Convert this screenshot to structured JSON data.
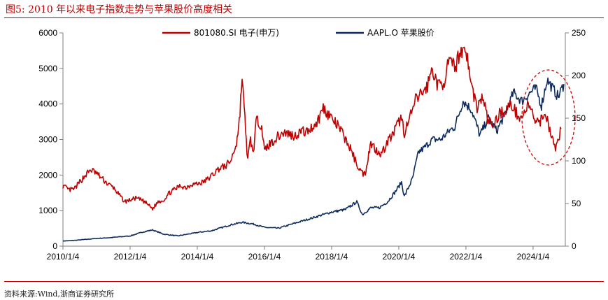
{
  "figure": {
    "title": "图5:   2010 年以来电子指数走势与苹果股价高度相关",
    "source": "资料来源:Wind,浙商证券研究所"
  },
  "colors": {
    "title": "#c00000",
    "electronics": "#c00000",
    "apple": "#0d2a5e",
    "ellipse": "#d40000",
    "axis": "#7f7f7f"
  },
  "chart_data": {
    "type": "line",
    "x_ticks": [
      "2010/1/4",
      "2012/1/4",
      "2014/1/4",
      "2016/1/4",
      "2018/1/4",
      "2020/1/4",
      "2022/1/4",
      "2024/1/4"
    ],
    "y_left": {
      "ticks": [
        "0",
        "1000",
        "2000",
        "3000",
        "4000",
        "5000",
        "6000"
      ],
      "range": [
        0,
        6000
      ]
    },
    "y_right": {
      "ticks": [
        "0",
        "50",
        "100",
        "150",
        "200",
        "250"
      ],
      "range": [
        0,
        250
      ]
    },
    "grid": false,
    "legend_position": "top",
    "annotation": "red dashed ellipse around 2023-2024 divergence",
    "series": [
      {
        "name": "801080.SI 电子(申万)",
        "axis": "left",
        "x": [
          "2010-01",
          "2010-03",
          "2010-05",
          "2010-07",
          "2010-09",
          "2010-11",
          "2011-01",
          "2011-03",
          "2011-05",
          "2011-07",
          "2011-09",
          "2011-11",
          "2012-01",
          "2012-03",
          "2012-05",
          "2012-07",
          "2012-09",
          "2012-11",
          "2013-01",
          "2013-03",
          "2013-05",
          "2013-07",
          "2013-09",
          "2013-11",
          "2014-01",
          "2014-03",
          "2014-05",
          "2014-07",
          "2014-09",
          "2014-11",
          "2015-01",
          "2015-03",
          "2015-04",
          "2015-05",
          "2015-06",
          "2015-07",
          "2015-08",
          "2015-09",
          "2015-10",
          "2015-11",
          "2015-12",
          "2016-01",
          "2016-02",
          "2016-04",
          "2016-06",
          "2016-08",
          "2016-10",
          "2016-12",
          "2017-02",
          "2017-04",
          "2017-06",
          "2017-08",
          "2017-10",
          "2017-12",
          "2018-02",
          "2018-04",
          "2018-06",
          "2018-08",
          "2018-10",
          "2018-12",
          "2019-01",
          "2019-02",
          "2019-03",
          "2019-05",
          "2019-07",
          "2019-09",
          "2019-11",
          "2020-01",
          "2020-02",
          "2020-03",
          "2020-05",
          "2020-07",
          "2020-09",
          "2020-11",
          "2021-01",
          "2021-03",
          "2021-05",
          "2021-07",
          "2021-09",
          "2021-11",
          "2022-01",
          "2022-03",
          "2022-05",
          "2022-07",
          "2022-09",
          "2022-11",
          "2023-01",
          "2023-03",
          "2023-05",
          "2023-07",
          "2023-09",
          "2023-11",
          "2024-01",
          "2024-02",
          "2024-03",
          "2024-05",
          "2024-07",
          "2024-09",
          "2024-11"
        ],
        "values": [
          1700,
          1580,
          1600,
          1800,
          2000,
          2150,
          2050,
          1900,
          1750,
          1650,
          1450,
          1250,
          1300,
          1350,
          1300,
          1200,
          1050,
          1250,
          1300,
          1500,
          1600,
          1700,
          1650,
          1750,
          1750,
          1800,
          1900,
          2050,
          2200,
          2250,
          2400,
          2900,
          3500,
          4750,
          3600,
          2400,
          3000,
          2600,
          3500,
          3500,
          3400,
          2650,
          2800,
          2950,
          3100,
          3200,
          3150,
          3100,
          3250,
          3200,
          3350,
          3500,
          3900,
          3700,
          3500,
          3300,
          3000,
          2700,
          2300,
          2050,
          2050,
          2500,
          2900,
          2700,
          2600,
          2950,
          3150,
          3500,
          3600,
          3200,
          3600,
          4100,
          4300,
          4450,
          5000,
          4500,
          4600,
          5200,
          5000,
          5500,
          5550,
          4500,
          3900,
          4200,
          3500,
          3400,
          3750,
          3800,
          4000,
          3750,
          3600,
          3950,
          3700,
          3500,
          3400,
          3800,
          3300,
          2700,
          3300
        ]
      },
      {
        "name": "AAPL.O 苹果股价",
        "axis": "right",
        "x": [
          "2010-01",
          "2010-06",
          "2011-01",
          "2011-06",
          "2012-01",
          "2012-06",
          "2012-09",
          "2013-01",
          "2013-06",
          "2014-01",
          "2014-06",
          "2015-01",
          "2015-05",
          "2015-09",
          "2016-01",
          "2016-06",
          "2016-11",
          "2017-06",
          "2018-01",
          "2018-06",
          "2018-10",
          "2018-12",
          "2019-03",
          "2019-06",
          "2019-09",
          "2019-12",
          "2020-02",
          "2020-03",
          "2020-06",
          "2020-08",
          "2020-10",
          "2021-01",
          "2021-04",
          "2021-07",
          "2021-09",
          "2021-12",
          "2022-03",
          "2022-06",
          "2022-09",
          "2022-12",
          "2023-03",
          "2023-06",
          "2023-09",
          "2023-12",
          "2024-02",
          "2024-04",
          "2024-06",
          "2024-08",
          "2024-10",
          "2024-12"
        ],
        "values": [
          6,
          7,
          9,
          10,
          12,
          17,
          19,
          14,
          12,
          16,
          18,
          25,
          28,
          26,
          22,
          21,
          26,
          33,
          40,
          43,
          52,
          37,
          45,
          45,
          52,
          65,
          75,
          58,
          80,
          110,
          115,
          125,
          125,
          135,
          140,
          170,
          160,
          130,
          150,
          135,
          155,
          180,
          170,
          180,
          185,
          165,
          195,
          185,
          175,
          190
        ]
      }
    ]
  }
}
